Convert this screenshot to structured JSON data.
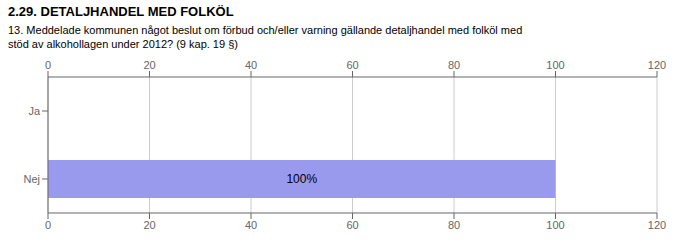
{
  "chart_data": {
    "type": "bar",
    "orientation": "horizontal",
    "title": "2.29. DETALJHANDEL MED FOLKÖL",
    "subtitle": "13. Meddelade kommunen något beslut om förbud och/eller varning gällande detaljhandel med folköl med\nstöd av alkohollagen under 2012? (9 kap. 19 §)",
    "categories": [
      "Nej",
      "Ja"
    ],
    "values": [
      100,
      0
    ],
    "value_labels": [
      "100%",
      null
    ],
    "data_labels": true,
    "color": "#9999ee",
    "xlim": [
      0,
      120
    ],
    "xticks": [
      0,
      20,
      40,
      60,
      80,
      100,
      120
    ],
    "grid": true
  }
}
